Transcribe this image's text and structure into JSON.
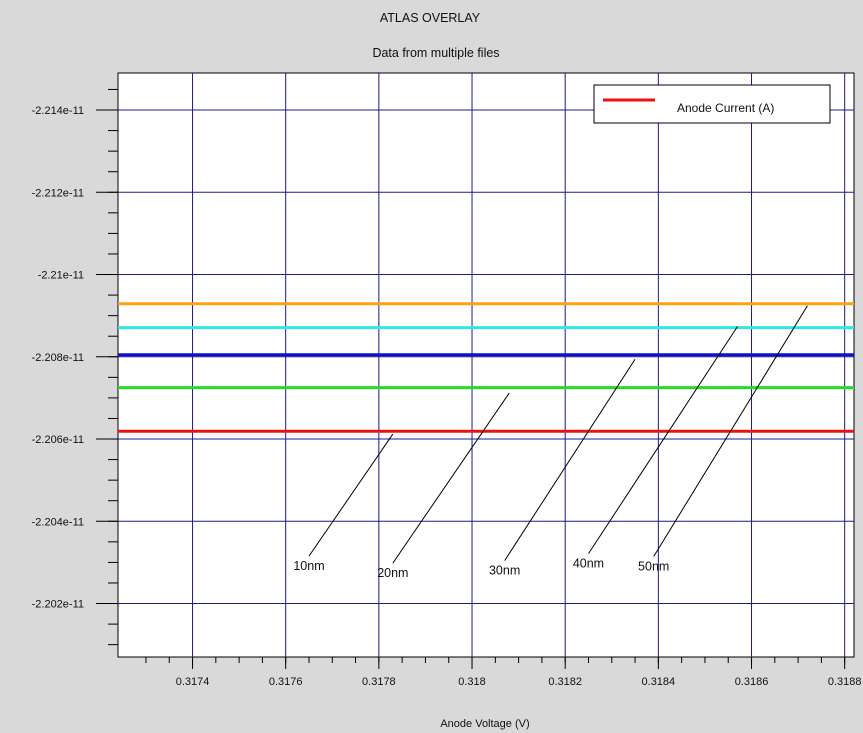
{
  "chart_data": {
    "type": "line",
    "title": "ATLAS OVERLAY",
    "subtitle": "Data from multiple files",
    "xlabel": "Anode Voltage (V)",
    "ylabel": "",
    "xlim": [
      0.31724,
      0.31882
    ],
    "ylim": [
      -2.2149e-11,
      -2.2007e-11
    ],
    "x_ticks": [
      0.3174,
      0.3176,
      0.3178,
      0.318,
      0.3182,
      0.3184,
      0.3186,
      0.3188
    ],
    "x_tick_labels": [
      "0.3174",
      "0.3176",
      "0.3178",
      "0.318",
      "0.3182",
      "0.3184",
      "0.3186",
      "0.3188"
    ],
    "y_ticks": [
      -2.214e-11,
      -2.212e-11,
      -2.21e-11,
      -2.208e-11,
      -2.206e-11,
      -2.204e-11,
      -2.202e-11
    ],
    "y_tick_labels": [
      "-2.214e-11",
      "-2.212e-11",
      "-2.21e-11",
      "-2.208e-11",
      "-2.206e-11",
      "-2.204e-11",
      "-2.202e-11"
    ],
    "grid": true,
    "legend_position": "top-right",
    "legend": [
      {
        "label": "Anode Current (A)",
        "color": "#ee1111"
      }
    ],
    "series": [
      {
        "color": "#ffa010",
        "x": [
          0.31724,
          0.31882
        ],
        "y": [
          -2.20929e-11,
          -2.20929e-11
        ]
      },
      {
        "color": "#33e6e6",
        "x": [
          0.31724,
          0.31882
        ],
        "y": [
          -2.20871e-11,
          -2.20871e-11
        ]
      },
      {
        "color": "#1010cc",
        "x": [
          0.31724,
          0.31882
        ],
        "y": [
          -2.20805e-11,
          -2.20805e-11
        ]
      },
      {
        "color": "#22dd22",
        "x": [
          0.31724,
          0.31882
        ],
        "y": [
          -2.20725e-11,
          -2.20725e-11
        ]
      },
      {
        "color": "#ee1111",
        "x": [
          0.31724,
          0.31882
        ],
        "y": [
          -2.20619e-11,
          -2.20619e-11
        ]
      }
    ],
    "annotations": [
      {
        "text": "10nm",
        "label_x": 0.31765,
        "label_y": -2.20291e-11,
        "target_x": 0.31783,
        "target_y": -2.20612e-11
      },
      {
        "text": "20nm",
        "label_x": 0.31783,
        "label_y": -2.20274e-11,
        "target_x": 0.31808,
        "target_y": -2.20712e-11
      },
      {
        "text": "30nm",
        "label_x": 0.31807,
        "label_y": -2.2028e-11,
        "target_x": 0.31835,
        "target_y": -2.20794e-11
      },
      {
        "text": "40nm",
        "label_x": 0.31825,
        "label_y": -2.20297e-11,
        "target_x": 0.31857,
        "target_y": -2.20874e-11
      },
      {
        "text": "50nm",
        "label_x": 0.31839,
        "label_y": -2.2029e-11,
        "target_x": 0.31872,
        "target_y": -2.20924e-11
      }
    ]
  }
}
